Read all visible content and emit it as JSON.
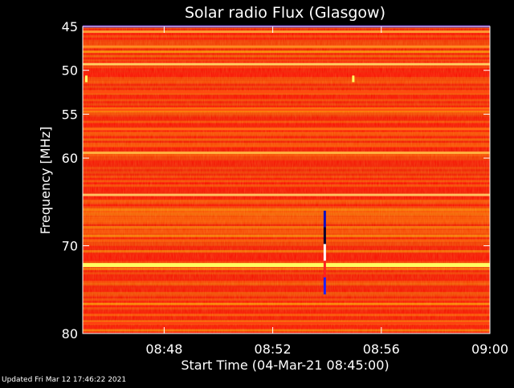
{
  "chart_data": {
    "type": "heatmap",
    "title": "Solar radio Flux (Glasgow)",
    "ylabel": "Frequency [MHz]",
    "xlabel": "Start Time (04-Mar-21 08:45:00)",
    "x_unit": "time (HH:MM, UT)",
    "xlim": [
      "08:45",
      "09:00"
    ],
    "ylim": [
      45,
      80
    ],
    "y_axis_inverted": true,
    "x_ticks": [
      "08:48",
      "08:52",
      "08:56",
      "09:00"
    ],
    "y_ticks": [
      45,
      50,
      55,
      60,
      70,
      80
    ],
    "colormap": [
      "#ff0000",
      "#ff6000",
      "#ffb000",
      "#ffff80"
    ],
    "background_color": "#e81a00",
    "frequency_bands": [
      {
        "mhz": 45.0,
        "color": "#5010a0"
      },
      {
        "mhz": 45.6,
        "color": "#ff9a30"
      },
      {
        "mhz": 47.3,
        "color": "#ff8a20"
      },
      {
        "mhz": 49.3,
        "color": "#ffd060"
      },
      {
        "mhz": 52.5,
        "color": "#ff4a10"
      },
      {
        "mhz": 54.5,
        "color": "#ff5210"
      },
      {
        "mhz": 56.7,
        "color": "#ff6a10"
      },
      {
        "mhz": 59.4,
        "color": "#ffb040"
      },
      {
        "mhz": 64.2,
        "color": "#ffc060"
      },
      {
        "mhz": 72.2,
        "color": "#ffff60"
      },
      {
        "mhz": 78.8,
        "color": "#ff4010"
      }
    ],
    "burst_features": [
      {
        "time": "08:53:55",
        "freq_start_mhz": 66.0,
        "freq_end_mhz": 75.5,
        "colors": [
          "#1010c0",
          "#000030",
          "#ffffff",
          "#ff2020",
          "#2020ff"
        ]
      },
      {
        "time": "08:45:08",
        "freq_start_mhz": 50.6,
        "freq_end_mhz": 51.3,
        "colors": [
          "#ffff60"
        ]
      },
      {
        "time": "08:54:58",
        "freq_start_mhz": 50.6,
        "freq_end_mhz": 51.3,
        "colors": [
          "#ffff60"
        ]
      }
    ]
  },
  "footer_text": "Updated Fri Mar 12 17:46:22 2021"
}
